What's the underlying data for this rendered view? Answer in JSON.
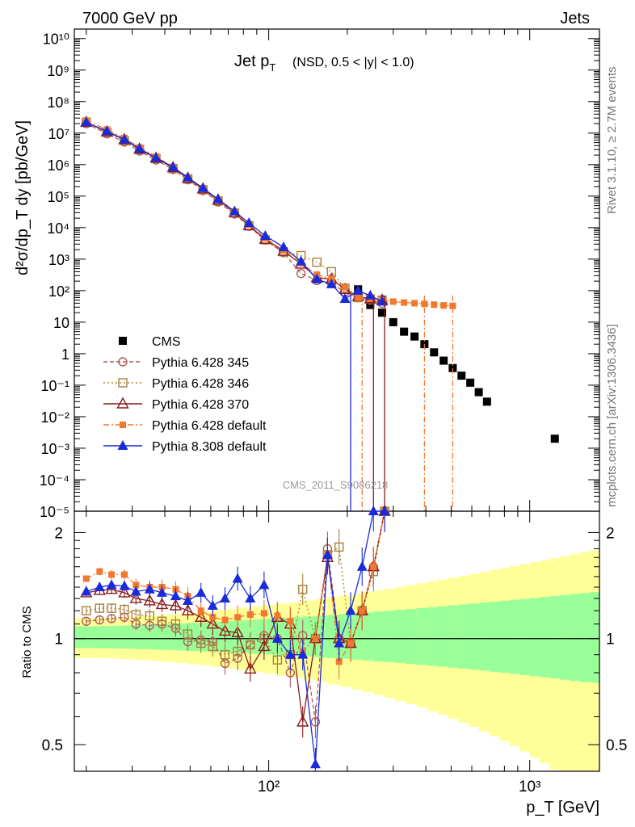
{
  "header": {
    "left": "7000 GeV pp",
    "right": "Jets"
  },
  "side_labels": {
    "rivet": "Rivet 3.1.10, ≥ 2.7M events",
    "mcplots": "mcplots.cern.ch [arXiv:1306.3436]"
  },
  "watermark": "CMS_2011_S9086218",
  "plot_title": {
    "main": "Jet p",
    "sub": "T",
    "extra": "(NSD, 0.5 < |y| < 1.0)"
  },
  "ylabel_top": "d²σ/dp_T dy [pb/GeV]",
  "ylabel_bottom": "Ratio to CMS",
  "xlabel": "p_T [GeV]",
  "x_ticks": [
    "10²",
    "10³"
  ],
  "y_ticks_top": [
    "10¹⁰",
    "10⁹",
    "10⁸",
    "10⁷",
    "10⁶",
    "10⁵",
    "10⁴",
    "10³",
    "10²",
    "10",
    "1",
    "10⁻¹",
    "10⁻²",
    "10⁻³",
    "10⁻⁴",
    "10⁻⁵"
  ],
  "y_ticks_bottom": [
    "2",
    "1",
    "0.5"
  ],
  "legend": [
    {
      "label": "CMS",
      "color": "#000000",
      "marker": "filled-square",
      "line": "none"
    },
    {
      "label": "Pythia 6.428 345",
      "color": "#b05a5a",
      "marker": "open-circle",
      "line": "dashed"
    },
    {
      "label": "Pythia 6.428 346",
      "color": "#a8823c",
      "marker": "open-square",
      "line": "dotted"
    },
    {
      "label": "Pythia 6.428 370",
      "color": "#8b1a1a",
      "marker": "open-triangle",
      "line": "solid"
    },
    {
      "label": "Pythia 6.428 default",
      "color": "#f2782e",
      "marker": "filled-square-small",
      "line": "dashdot"
    },
    {
      "label": "Pythia 8.308 default",
      "color": "#1a2bd9",
      "marker": "filled-triangle",
      "line": "solid"
    }
  ],
  "band_colors": {
    "outer": "#ffff99",
    "inner": "#99ff99"
  },
  "chart_data": [
    {
      "type": "scatter",
      "title": "Jet p_T (NSD, 0.5 < |y| < 1.0)",
      "xlabel": "p_T [GeV]",
      "ylabel": "d²σ/dp_T dy [pb/GeV]",
      "xscale": "log",
      "yscale": "log",
      "xlim": [
        18,
        1850
      ],
      "ylim": [
        1e-05,
        20000000000.0
      ],
      "grid": false,
      "legend_position": "bottom-left",
      "series": [
        {
          "name": "CMS",
          "x": [
            20,
            24,
            28,
            32,
            37,
            43,
            49,
            56,
            64,
            74,
            84,
            97,
            114,
            133,
            153,
            174,
            196,
            220,
            245,
            272,
            300,
            330,
            362,
            395,
            430,
            468,
            507,
            548,
            592,
            638,
            686,
            737,
            790,
            846,
            905,
            967,
            1032,
            1101,
            1172,
            1248,
            1327,
            1410,
            1497,
            1588,
            1684,
            1784
          ],
          "y": [
            null,
            null,
            null,
            null,
            null,
            null,
            null,
            null,
            null,
            null,
            null,
            null,
            null,
            null,
            null,
            null,
            null,
            110,
            35,
            20,
            10,
            5,
            3.5,
            2,
            1.1,
            0.6,
            0.35,
            0.2,
            0.12,
            0.06,
            0.03,
            null,
            null,
            null,
            null,
            null,
            null,
            null,
            null,
            0.002,
            null,
            null,
            null,
            null,
            null,
            null
          ]
        },
        {
          "name": "Pythia 6.428 345",
          "x": [
            20,
            24,
            28,
            32,
            37,
            43,
            49,
            56,
            64,
            74,
            84,
            97,
            114,
            133,
            153,
            174,
            196,
            220,
            245,
            272
          ],
          "y": [
            20000000.0,
            9500000.0,
            5200000.0,
            2700000.0,
            1400000.0,
            700000.0,
            330000.0,
            150000.0,
            65000.0,
            27000.0,
            11000.0,
            4000.0,
            1600.0,
            350.0,
            210.0,
            170.0,
            90.0,
            60.0,
            50.0,
            40.0
          ]
        },
        {
          "name": "Pythia 6.428 346",
          "x": [
            20,
            24,
            28,
            32,
            37,
            43,
            49,
            56,
            64,
            74,
            84,
            97,
            114,
            133,
            153,
            174,
            196,
            220,
            245,
            272
          ],
          "y": [
            22000000.0,
            10500000.0,
            5800000.0,
            3000000.0,
            1550000.0,
            750000.0,
            350000.0,
            160000.0,
            70000.0,
            29000.0,
            11500.0,
            4100.0,
            1700.0,
            1300.0,
            800.0,
            400.0,
            120.0,
            60.0,
            55.0,
            50.0
          ]
        },
        {
          "name": "Pythia 6.428 370",
          "x": [
            20,
            24,
            28,
            32,
            37,
            43,
            49,
            56,
            64,
            74,
            84,
            97,
            114,
            133,
            153,
            174,
            196,
            220,
            245,
            272
          ],
          "y": [
            22000000.0,
            11000000.0,
            6200000.0,
            3100000.0,
            1600000.0,
            800000.0,
            370000.0,
            170000.0,
            75000.0,
            30000.0,
            11500.0,
            4300.0,
            1800.0,
            700.0,
            260.0,
            230.0,
            110.0,
            65.0,
            55.0,
            50.0
          ]
        },
        {
          "name": "Pythia 6.428 default",
          "x": [
            20,
            24,
            28,
            32,
            37,
            43,
            49,
            56,
            64,
            74,
            84,
            97,
            114,
            133,
            153,
            174,
            196,
            220,
            245,
            272,
            300,
            330,
            362,
            395,
            430,
            468,
            507
          ],
          "y": [
            25000000.0,
            13000000.0,
            7000000.0,
            3500000.0,
            1800000.0,
            850000.0,
            390000.0,
            180000.0,
            78000.0,
            31000.0,
            12500.0,
            4600.0,
            1900.0,
            750.0,
            320.0,
            240.0,
            130.0,
            60.0,
            55.0,
            50.0,
            45.0,
            42.0,
            40.0,
            38.0,
            36.0,
            34.0,
            33.0
          ]
        },
        {
          "name": "Pythia 8.308 default",
          "x": [
            20,
            24,
            28,
            32,
            37,
            43,
            49,
            56,
            64,
            74,
            84,
            97,
            114,
            133,
            153,
            174,
            196,
            220,
            245,
            272
          ],
          "y": [
            22000000.0,
            11500000.0,
            6300000.0,
            3200000.0,
            1650000.0,
            830000.0,
            390000.0,
            180000.0,
            80000.0,
            33000.0,
            14000.0,
            5500.0,
            2400.0,
            850.0,
            230.0,
            160.0,
            55.0,
            100.0,
            70.0,
            45.0
          ]
        }
      ]
    },
    {
      "type": "scatter",
      "xlabel": "p_T [GeV]",
      "ylabel": "Ratio to CMS",
      "xscale": "log",
      "yscale": "log",
      "xlim": [
        18,
        1850
      ],
      "ylim": [
        0.42,
        2.3
      ],
      "grid": false,
      "series": [
        {
          "name": "Pythia 6.428 345",
          "x": [
            20,
            22.5,
            25,
            28,
            31,
            35,
            39,
            44,
            49,
            55,
            61,
            68,
            76,
            85,
            96,
            108,
            121,
            135,
            151,
            168,
            186,
            206,
            228,
            252,
            278
          ],
          "y": [
            1.12,
            1.13,
            1.14,
            1.15,
            1.1,
            1.09,
            1.1,
            1.07,
            0.98,
            0.99,
            0.98,
            0.85,
            0.88,
            0.96,
            1.02,
            1.0,
            0.8,
            1.02,
            0.58,
            1.8,
            1.0,
            0.97,
            1.2,
            1.6,
            2.3
          ]
        },
        {
          "name": "Pythia 6.428 346",
          "x": [
            20,
            22.5,
            25,
            28,
            31,
            35,
            39,
            44,
            49,
            55,
            61,
            68,
            76,
            85,
            96,
            108,
            121,
            135,
            151,
            168,
            186,
            206,
            228,
            252,
            278
          ],
          "y": [
            1.2,
            1.22,
            1.22,
            1.21,
            1.17,
            1.16,
            1.12,
            1.1,
            1.03,
            0.97,
            0.95,
            0.9,
            0.92,
            0.96,
            1.0,
            0.87,
            0.9,
            1.38,
            1.0,
            1.73,
            1.82,
            0.97,
            1.2,
            1.55,
            2.3
          ]
        },
        {
          "name": "Pythia 6.428 370",
          "x": [
            20,
            22.5,
            25,
            28,
            31,
            35,
            39,
            44,
            49,
            55,
            61,
            68,
            76,
            85,
            96,
            108,
            121,
            135,
            151,
            168,
            186,
            206,
            228,
            252,
            278
          ],
          "y": [
            1.35,
            1.37,
            1.38,
            1.35,
            1.3,
            1.28,
            1.25,
            1.24,
            1.2,
            1.15,
            1.1,
            1.05,
            1.04,
            0.82,
            0.95,
            1.15,
            1.1,
            0.58,
            1.0,
            1.7,
            1.0,
            0.97,
            1.2,
            1.6,
            2.3
          ]
        },
        {
          "name": "Pythia 6.428 default",
          "x": [
            20,
            22.5,
            25,
            28,
            31,
            35,
            39,
            44,
            49,
            55,
            61,
            68,
            76,
            85,
            96,
            108,
            121,
            135,
            151,
            168,
            186,
            206,
            228,
            252,
            278
          ],
          "y": [
            1.48,
            1.55,
            1.52,
            1.52,
            1.42,
            1.4,
            1.4,
            1.38,
            1.32,
            1.2,
            1.15,
            1.13,
            1.15,
            1.17,
            1.18,
            1.16,
            1.12,
            0.92,
            1.0,
            1.73,
            0.86,
            0.97,
            1.2,
            1.6,
            2.3
          ]
        },
        {
          "name": "Pythia 8.308 default",
          "x": [
            20,
            22.5,
            25,
            28,
            31,
            35,
            39,
            44,
            49,
            55,
            61,
            68,
            76,
            85,
            96,
            108,
            121,
            135,
            151,
            168,
            186,
            206,
            228,
            252,
            278
          ],
          "y": [
            1.36,
            1.4,
            1.42,
            1.41,
            1.36,
            1.38,
            1.35,
            1.32,
            1.28,
            1.35,
            1.24,
            1.3,
            1.48,
            1.3,
            1.42,
            1.0,
            0.9,
            0.9,
            0.44,
            1.73,
            0.97,
            1.2,
            1.6,
            2.3,
            2.3
          ]
        }
      ]
    }
  ]
}
